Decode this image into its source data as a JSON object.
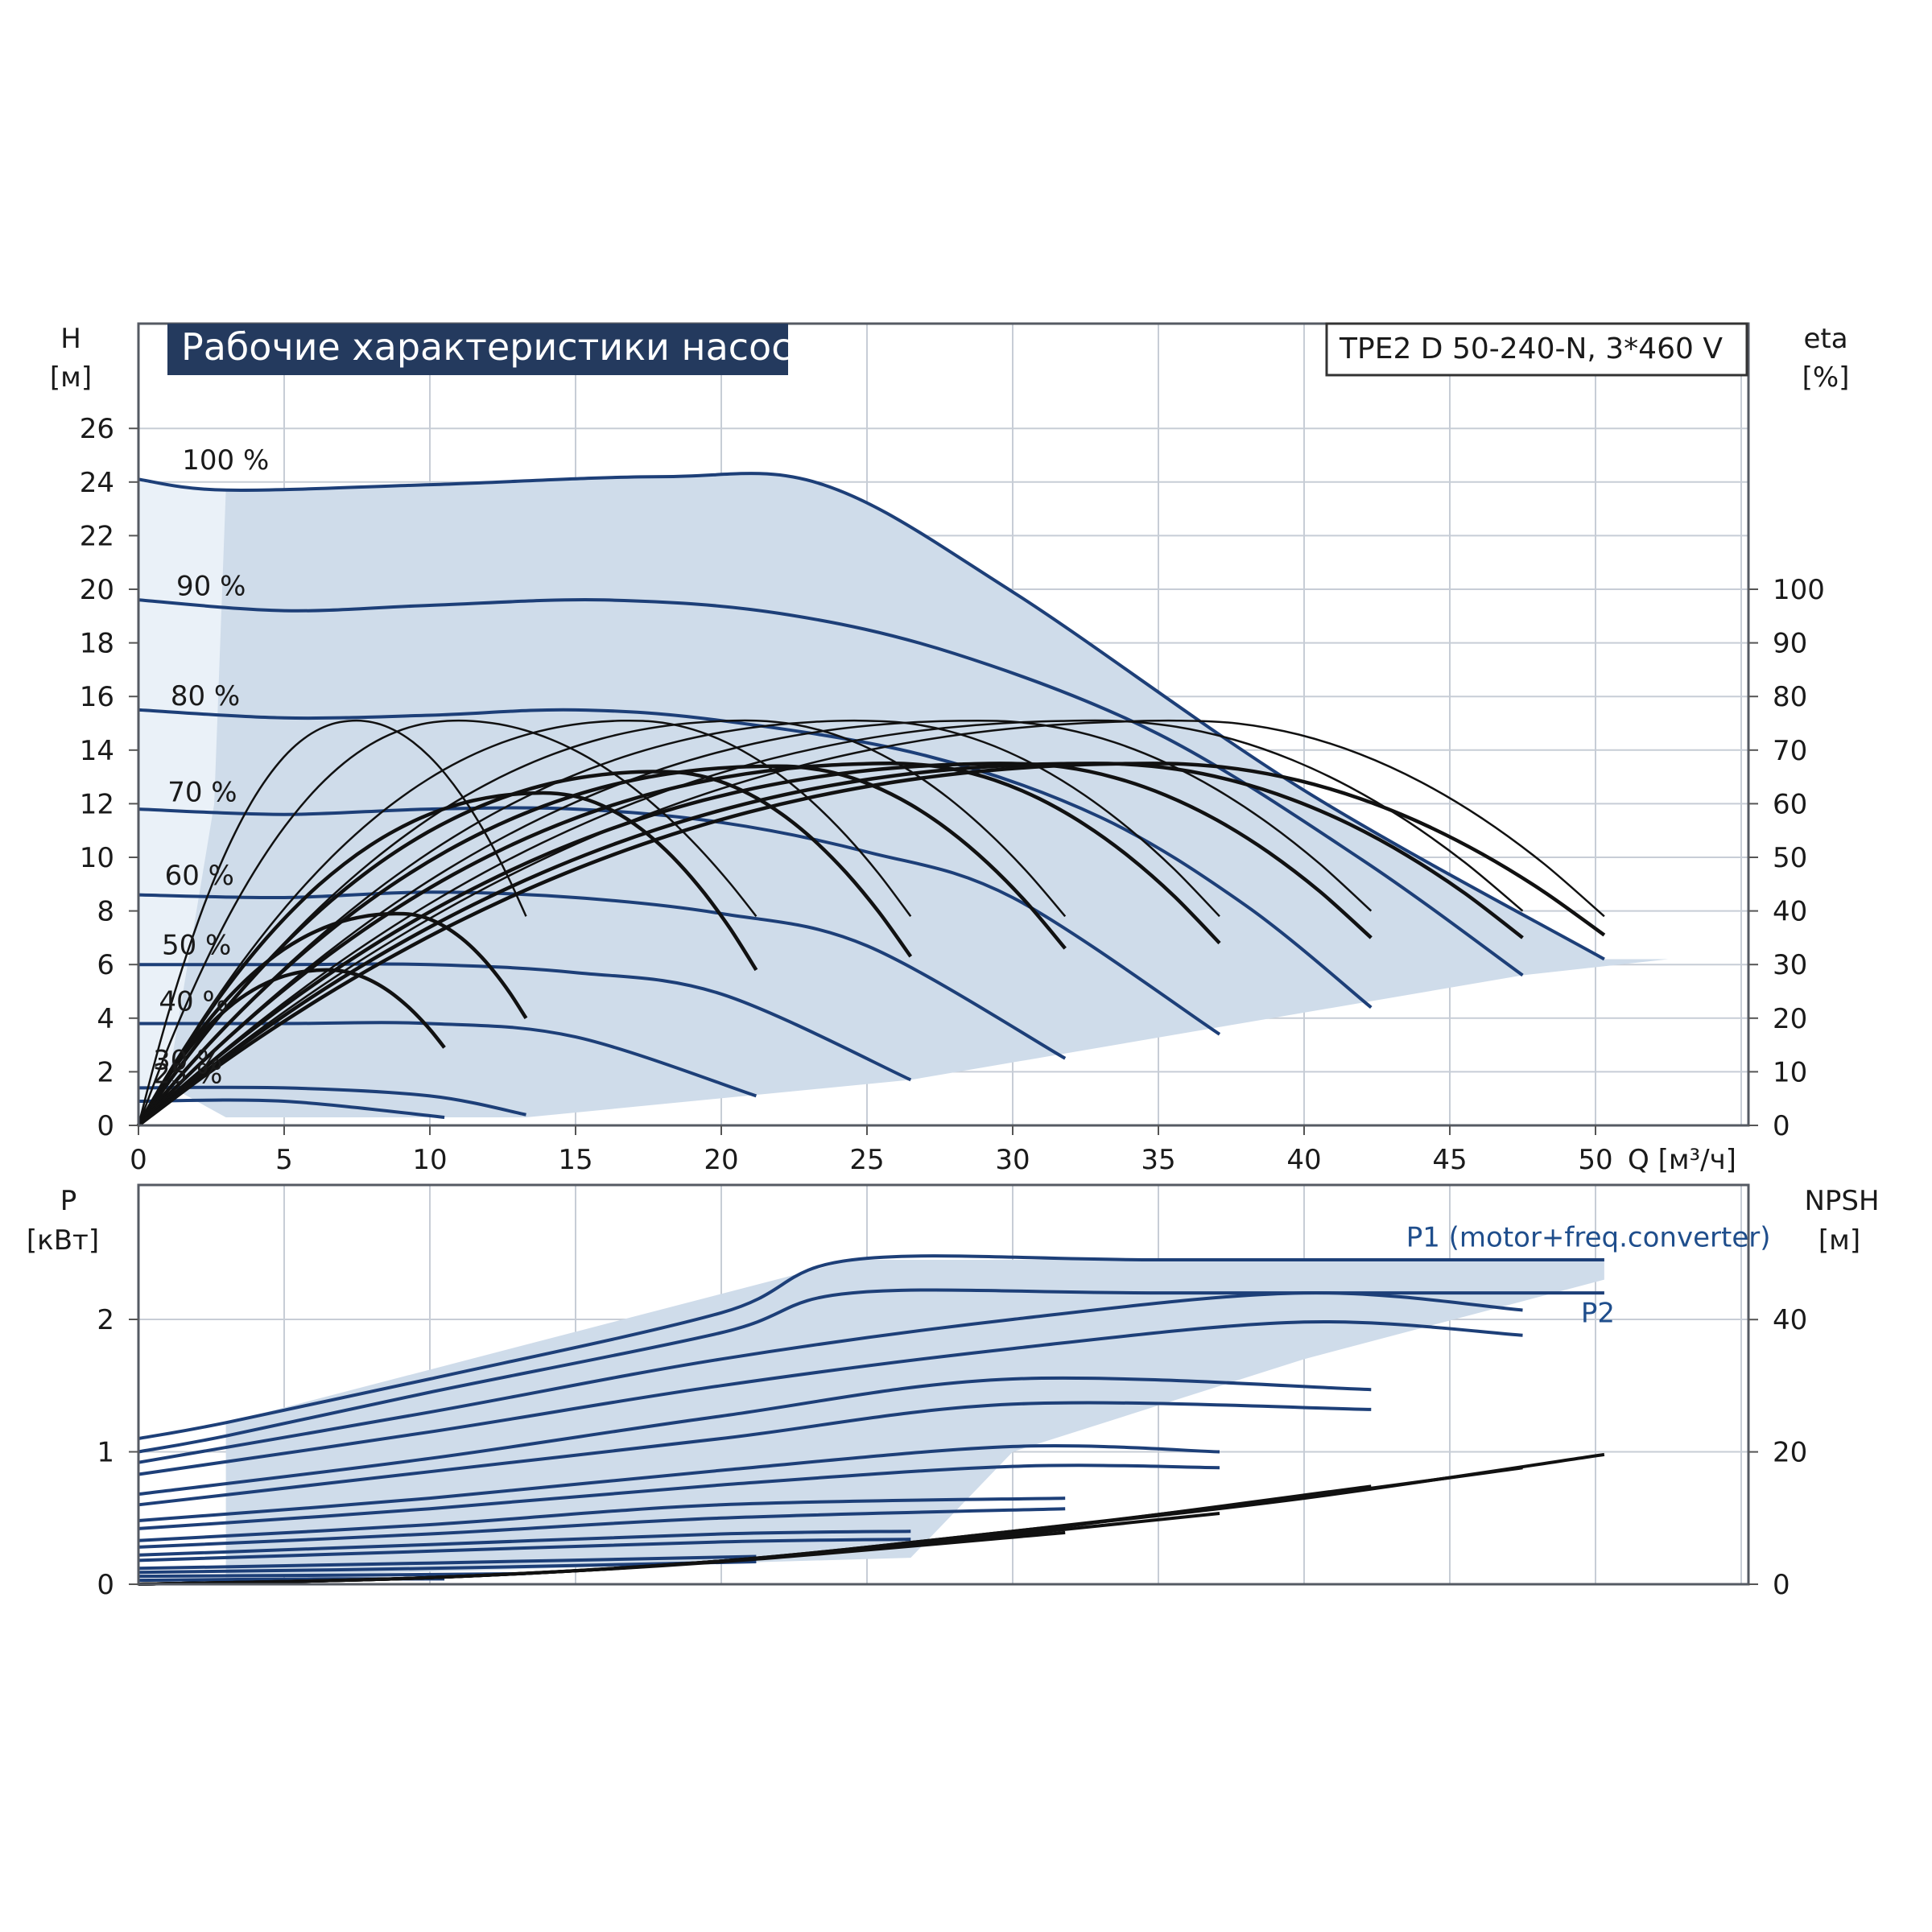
{
  "chart_data": [
    {
      "type": "line",
      "title": "Рабочие характеристики насоса",
      "model": "TPE2 D 50-240-N, 3*460 V",
      "xlabel": "Q [м³/ч]",
      "ylabel_left": {
        "name": "H",
        "unit": "[м]"
      },
      "ylabel_right": {
        "name": "eta",
        "unit": "[%]"
      },
      "xlim": [
        0,
        55
      ],
      "ylim_left": [
        0,
        28
      ],
      "ylim_right": [
        0,
        140
      ],
      "x_ticks": [
        "0",
        "5",
        "10",
        "15",
        "20",
        "25",
        "30",
        "35",
        "40",
        "45",
        "50"
      ],
      "y_left_ticks": [
        "0",
        "2",
        "4",
        "6",
        "8",
        "10",
        "12",
        "14",
        "16",
        "18",
        "20",
        "22",
        "24",
        "26"
      ],
      "y_right_ticks": [
        "0",
        "10",
        "20",
        "30",
        "40",
        "50",
        "60",
        "70",
        "80",
        "90",
        "100"
      ],
      "operating_region_color": "#cfdcea",
      "curve_color": "#1d3f78",
      "speed_labels": [
        {
          "text": "100 %",
          "x": 1.5,
          "h": 24.3
        },
        {
          "text": "90 %",
          "x": 1.3,
          "h": 19.6
        },
        {
          "text": "80 %",
          "x": 1.1,
          "h": 15.5
        },
        {
          "text": "70 %",
          "x": 1.0,
          "h": 11.9
        },
        {
          "text": "60 %",
          "x": 0.9,
          "h": 8.8
        },
        {
          "text": "50 %",
          "x": 0.8,
          "h": 6.2
        },
        {
          "text": "40 %",
          "x": 0.7,
          "h": 4.1
        },
        {
          "text": "30 %",
          "x": 0.5,
          "h": 1.9
        },
        {
          "text": "25 %",
          "x": 0.5,
          "h": 1.4
        }
      ],
      "head_series": [
        {
          "name": "100 %",
          "x": [
            0,
            3,
            10,
            18,
            23.5,
            30,
            40,
            50.3
          ],
          "h": [
            24.1,
            23.7,
            23.9,
            24.2,
            23.9,
            19.9,
            12.5,
            6.2
          ]
        },
        {
          "name": "90 %",
          "x": [
            0,
            5,
            10,
            16,
            22,
            28,
            35,
            42,
            47.5
          ],
          "h": [
            19.6,
            19.2,
            19.4,
            19.6,
            19.1,
            17.6,
            14.6,
            9.9,
            5.6
          ]
        },
        {
          "name": "80 %",
          "x": [
            0,
            5,
            10,
            15,
            20,
            27,
            33,
            38,
            42.3
          ],
          "h": [
            15.5,
            15.2,
            15.3,
            15.5,
            15.1,
            13.8,
            11.5,
            8.2,
            4.4
          ]
        },
        {
          "name": "70 %",
          "x": [
            0,
            5,
            10,
            15,
            20,
            25,
            30,
            37.1
          ],
          "h": [
            11.8,
            11.6,
            11.8,
            11.8,
            11.3,
            10.2,
            8.5,
            3.4
          ]
        },
        {
          "name": "60 %",
          "x": [
            0,
            5,
            10,
            15,
            20,
            25,
            31.8
          ],
          "h": [
            8.6,
            8.5,
            8.7,
            8.5,
            7.9,
            6.7,
            2.5
          ]
        },
        {
          "name": "50 %",
          "x": [
            0,
            5,
            10,
            15,
            20,
            26.5
          ],
          "h": [
            6.0,
            6.0,
            6.0,
            5.7,
            4.9,
            1.7
          ]
        },
        {
          "name": "40 %",
          "x": [
            0,
            5,
            10,
            15,
            21.2
          ],
          "h": [
            3.8,
            3.8,
            3.8,
            3.3,
            1.1
          ]
        },
        {
          "name": "30 %",
          "x": [
            0,
            5,
            10,
            13.3
          ],
          "h": [
            1.4,
            1.4,
            1.1,
            0.4
          ]
        },
        {
          "name": "25 %",
          "x": [
            0,
            5,
            10.5
          ],
          "h": [
            0.9,
            0.9,
            0.3
          ]
        }
      ],
      "efficiency_curves_note_values": "eta in % on right axis; peak ~75 % at upper family, ~67 % at lower family",
      "efficiency_series": [
        {
          "peak_q": 7.5,
          "peak_eta": 75.5,
          "end_q": 13.3,
          "end_eta": 39,
          "thick": false
        },
        {
          "peak_q": 11,
          "peak_eta": 75.5,
          "end_q": 21.2,
          "end_eta": 39,
          "thick": false
        },
        {
          "peak_q": 17,
          "peak_eta": 75.5,
          "end_q": 26.5,
          "end_eta": 39,
          "thick": false
        },
        {
          "peak_q": 21,
          "peak_eta": 75.5,
          "end_q": 31.8,
          "end_eta": 39,
          "thick": false
        },
        {
          "peak_q": 25,
          "peak_eta": 75.5,
          "end_q": 37.1,
          "end_eta": 39,
          "thick": false
        },
        {
          "peak_q": 29,
          "peak_eta": 75.5,
          "end_q": 42.3,
          "end_eta": 40,
          "thick": false
        },
        {
          "peak_q": 33,
          "peak_eta": 75.5,
          "end_q": 47.5,
          "end_eta": 40,
          "thick": false
        },
        {
          "peak_q": 36,
          "peak_eta": 75.5,
          "end_q": 50.3,
          "end_eta": 39,
          "thick": false
        },
        {
          "peak_q": 6.5,
          "peak_eta": 29,
          "end_q": 10.5,
          "end_eta": 14.5,
          "thick": true
        },
        {
          "peak_q": 9,
          "peak_eta": 39.5,
          "end_q": 13.3,
          "end_eta": 20,
          "thick": true
        },
        {
          "peak_q": 14,
          "peak_eta": 62,
          "end_q": 21.2,
          "end_eta": 29,
          "thick": true
        },
        {
          "peak_q": 18,
          "peak_eta": 66,
          "end_q": 26.5,
          "end_eta": 31.5,
          "thick": true
        },
        {
          "peak_q": 22,
          "peak_eta": 67,
          "end_q": 31.8,
          "end_eta": 33,
          "thick": true
        },
        {
          "peak_q": 26,
          "peak_eta": 67.5,
          "end_q": 37.1,
          "end_eta": 34,
          "thick": true
        },
        {
          "peak_q": 30,
          "peak_eta": 67.5,
          "end_q": 42.3,
          "end_eta": 35,
          "thick": true
        },
        {
          "peak_q": 33,
          "peak_eta": 67.5,
          "end_q": 47.5,
          "end_eta": 35,
          "thick": true
        },
        {
          "peak_q": 35,
          "peak_eta": 67.5,
          "end_q": 50.3,
          "end_eta": 35.5,
          "thick": true
        }
      ]
    },
    {
      "type": "line",
      "ylabel_left": {
        "name": "P",
        "unit": "[кВт]"
      },
      "ylabel_right": {
        "name": "NPSH",
        "unit": "[м]"
      },
      "xlim": [
        0,
        55
      ],
      "ylim_left": [
        0,
        2.8
      ],
      "ylim_right": [
        0,
        56
      ],
      "y_left_ticks": [
        "0",
        "1",
        "2"
      ],
      "y_right_ticks": [
        "0",
        "20",
        "40"
      ],
      "series_labels": [
        {
          "name": "P1 (motor+freq.converter)",
          "x": 43.5,
          "p": 2.55
        },
        {
          "name": "P2",
          "x": 49.5,
          "p": 1.98
        }
      ],
      "power_series": [
        {
          "x": [
            0,
            3,
            10,
            20,
            24.5,
            35,
            50.3
          ],
          "p": [
            1.1,
            1.22,
            1.55,
            2.05,
            2.45,
            2.45,
            2.45
          ]
        },
        {
          "x": [
            0,
            3,
            10,
            20,
            24.5,
            35,
            50.3
          ],
          "p": [
            1.0,
            1.12,
            1.45,
            1.9,
            2.2,
            2.2,
            2.2
          ]
        },
        {
          "x": [
            0,
            10,
            20,
            30,
            40,
            47.5
          ],
          "p": [
            0.92,
            1.3,
            1.7,
            2.0,
            2.2,
            2.07
          ]
        },
        {
          "x": [
            0,
            10,
            20,
            30,
            40,
            47.5
          ],
          "p": [
            0.83,
            1.15,
            1.5,
            1.78,
            1.98,
            1.88
          ]
        },
        {
          "x": [
            0,
            10,
            20,
            30,
            42.3
          ],
          "p": [
            0.68,
            0.95,
            1.27,
            1.55,
            1.47
          ]
        },
        {
          "x": [
            0,
            10,
            20,
            30,
            42.3
          ],
          "p": [
            0.6,
            0.85,
            1.1,
            1.36,
            1.32
          ]
        },
        {
          "x": [
            0,
            10,
            20,
            30,
            37.1
          ],
          "p": [
            0.48,
            0.65,
            0.86,
            1.04,
            1.0
          ]
        },
        {
          "x": [
            0,
            10,
            20,
            30,
            37.1
          ],
          "p": [
            0.42,
            0.57,
            0.75,
            0.89,
            0.88
          ]
        },
        {
          "x": [
            0,
            10,
            20,
            31.8
          ],
          "p": [
            0.33,
            0.45,
            0.6,
            0.65
          ]
        },
        {
          "x": [
            0,
            10,
            20,
            31.8
          ],
          "p": [
            0.28,
            0.38,
            0.5,
            0.57
          ]
        },
        {
          "x": [
            0,
            10,
            20,
            26.5
          ],
          "p": [
            0.22,
            0.3,
            0.38,
            0.4
          ]
        },
        {
          "x": [
            0,
            10,
            20,
            26.5
          ],
          "p": [
            0.18,
            0.25,
            0.32,
            0.34
          ]
        },
        {
          "x": [
            0,
            10,
            21.2
          ],
          "p": [
            0.12,
            0.16,
            0.21
          ]
        },
        {
          "x": [
            0,
            10,
            21.2
          ],
          "p": [
            0.09,
            0.12,
            0.17
          ]
        },
        {
          "x": [
            0,
            8,
            13.3
          ],
          "p": [
            0.06,
            0.07,
            0.08
          ]
        },
        {
          "x": [
            0,
            6,
            10.5
          ],
          "p": [
            0.03,
            0.04,
            0.04
          ]
        }
      ],
      "npsh_series": [
        {
          "x": [
            0,
            10,
            20,
            30,
            40,
            50.3
          ],
          "npsh": [
            0,
            1.0,
            3.5,
            8.0,
            13.0,
            19.6
          ]
        },
        {
          "x": [
            0,
            10,
            20,
            30,
            40,
            47.5
          ],
          "npsh": [
            0,
            1.0,
            3.5,
            8.0,
            13.2,
            17.6
          ]
        },
        {
          "x": [
            0,
            10,
            20,
            30,
            42.3
          ],
          "npsh": [
            0,
            1.0,
            3.5,
            7.8,
            14.8
          ]
        },
        {
          "x": [
            0,
            10,
            20,
            30,
            37.1
          ],
          "npsh": [
            0,
            1.0,
            3.5,
            7.5,
            10.7
          ]
        },
        {
          "x": [
            0,
            10,
            20,
            31.8
          ],
          "npsh": [
            0,
            1.0,
            3.4,
            7.8
          ]
        }
      ]
    }
  ]
}
